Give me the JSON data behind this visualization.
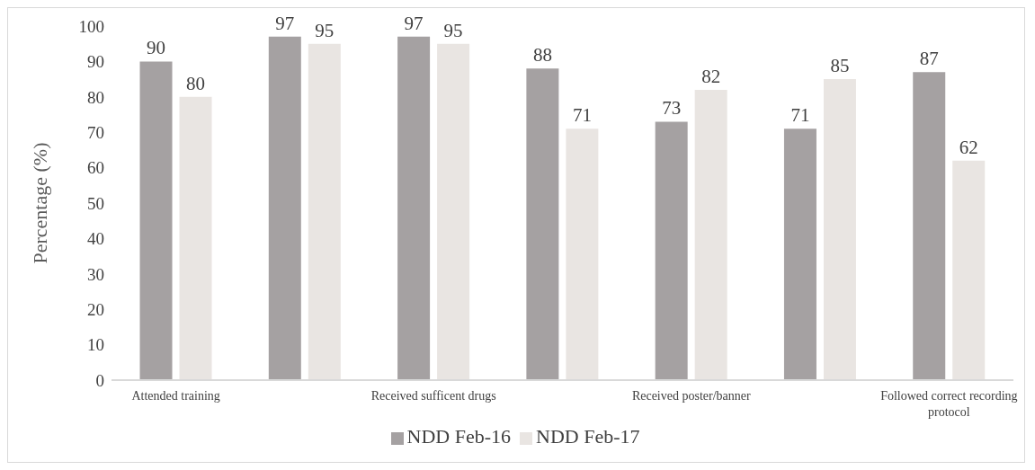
{
  "chart_data": {
    "type": "bar",
    "ylabel": "Percentage (%)",
    "categories": [
      "Attended  training",
      null,
      "Received sufficent drugs",
      null,
      "Received poster/banner",
      null,
      "Followed correct recording protocol"
    ],
    "series": [
      {
        "name": "NDD Feb-16",
        "color": "#a5a1a2",
        "values": [
          90,
          97,
          97,
          88,
          73,
          71,
          87
        ]
      },
      {
        "name": "NDD Feb-17",
        "color": "#e9e5e2",
        "values": [
          80,
          95,
          95,
          71,
          82,
          85,
          62
        ]
      }
    ],
    "ylim": [
      0,
      100
    ],
    "yticks": [
      0,
      10,
      20,
      30,
      40,
      50,
      60,
      70,
      80,
      90,
      100
    ],
    "grid": false,
    "legend": "bottom",
    "data_labels": true
  }
}
